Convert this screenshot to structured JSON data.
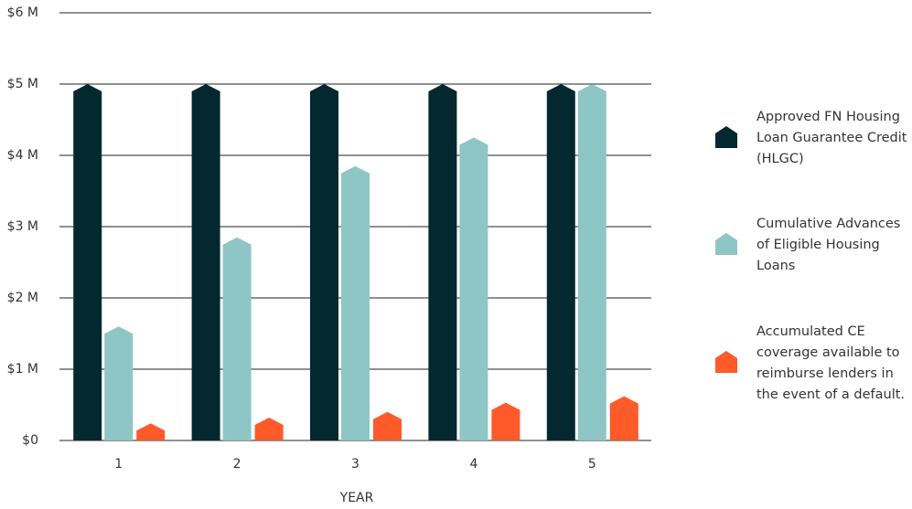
{
  "chart_data": {
    "type": "bar",
    "x_label": "YEAR",
    "categories": [
      "1",
      "2",
      "3",
      "4",
      "5"
    ],
    "series": [
      {
        "name": "Approved FN Housing Loan Guarantee Credit (HLGC)",
        "color": "#03282f",
        "values": [
          5,
          5,
          5,
          5,
          5
        ]
      },
      {
        "name": "Cumulative Advances of Eligible Housing Loans",
        "color": "#8ec6c5",
        "values": [
          1.6,
          2.85,
          3.85,
          4.25,
          5
        ]
      },
      {
        "name": "Accumulated CE coverage available to reimburse lenders in the event of a default.",
        "color": "#fe5a2a",
        "values": [
          0.24,
          0.32,
          0.4,
          0.53,
          0.62
        ]
      }
    ],
    "ylim": [
      0,
      6
    ],
    "yticks": [
      {
        "value": 0,
        "label": "$0"
      },
      {
        "value": 1,
        "label": "$1 M"
      },
      {
        "value": 2,
        "label": "$2 M"
      },
      {
        "value": 3,
        "label": "$3 M"
      },
      {
        "value": 4,
        "label": "$4 M"
      },
      {
        "value": 5,
        "label": "$5 M"
      },
      {
        "value": 6,
        "label": "$6 M"
      }
    ],
    "grid": true,
    "legend": "right"
  }
}
